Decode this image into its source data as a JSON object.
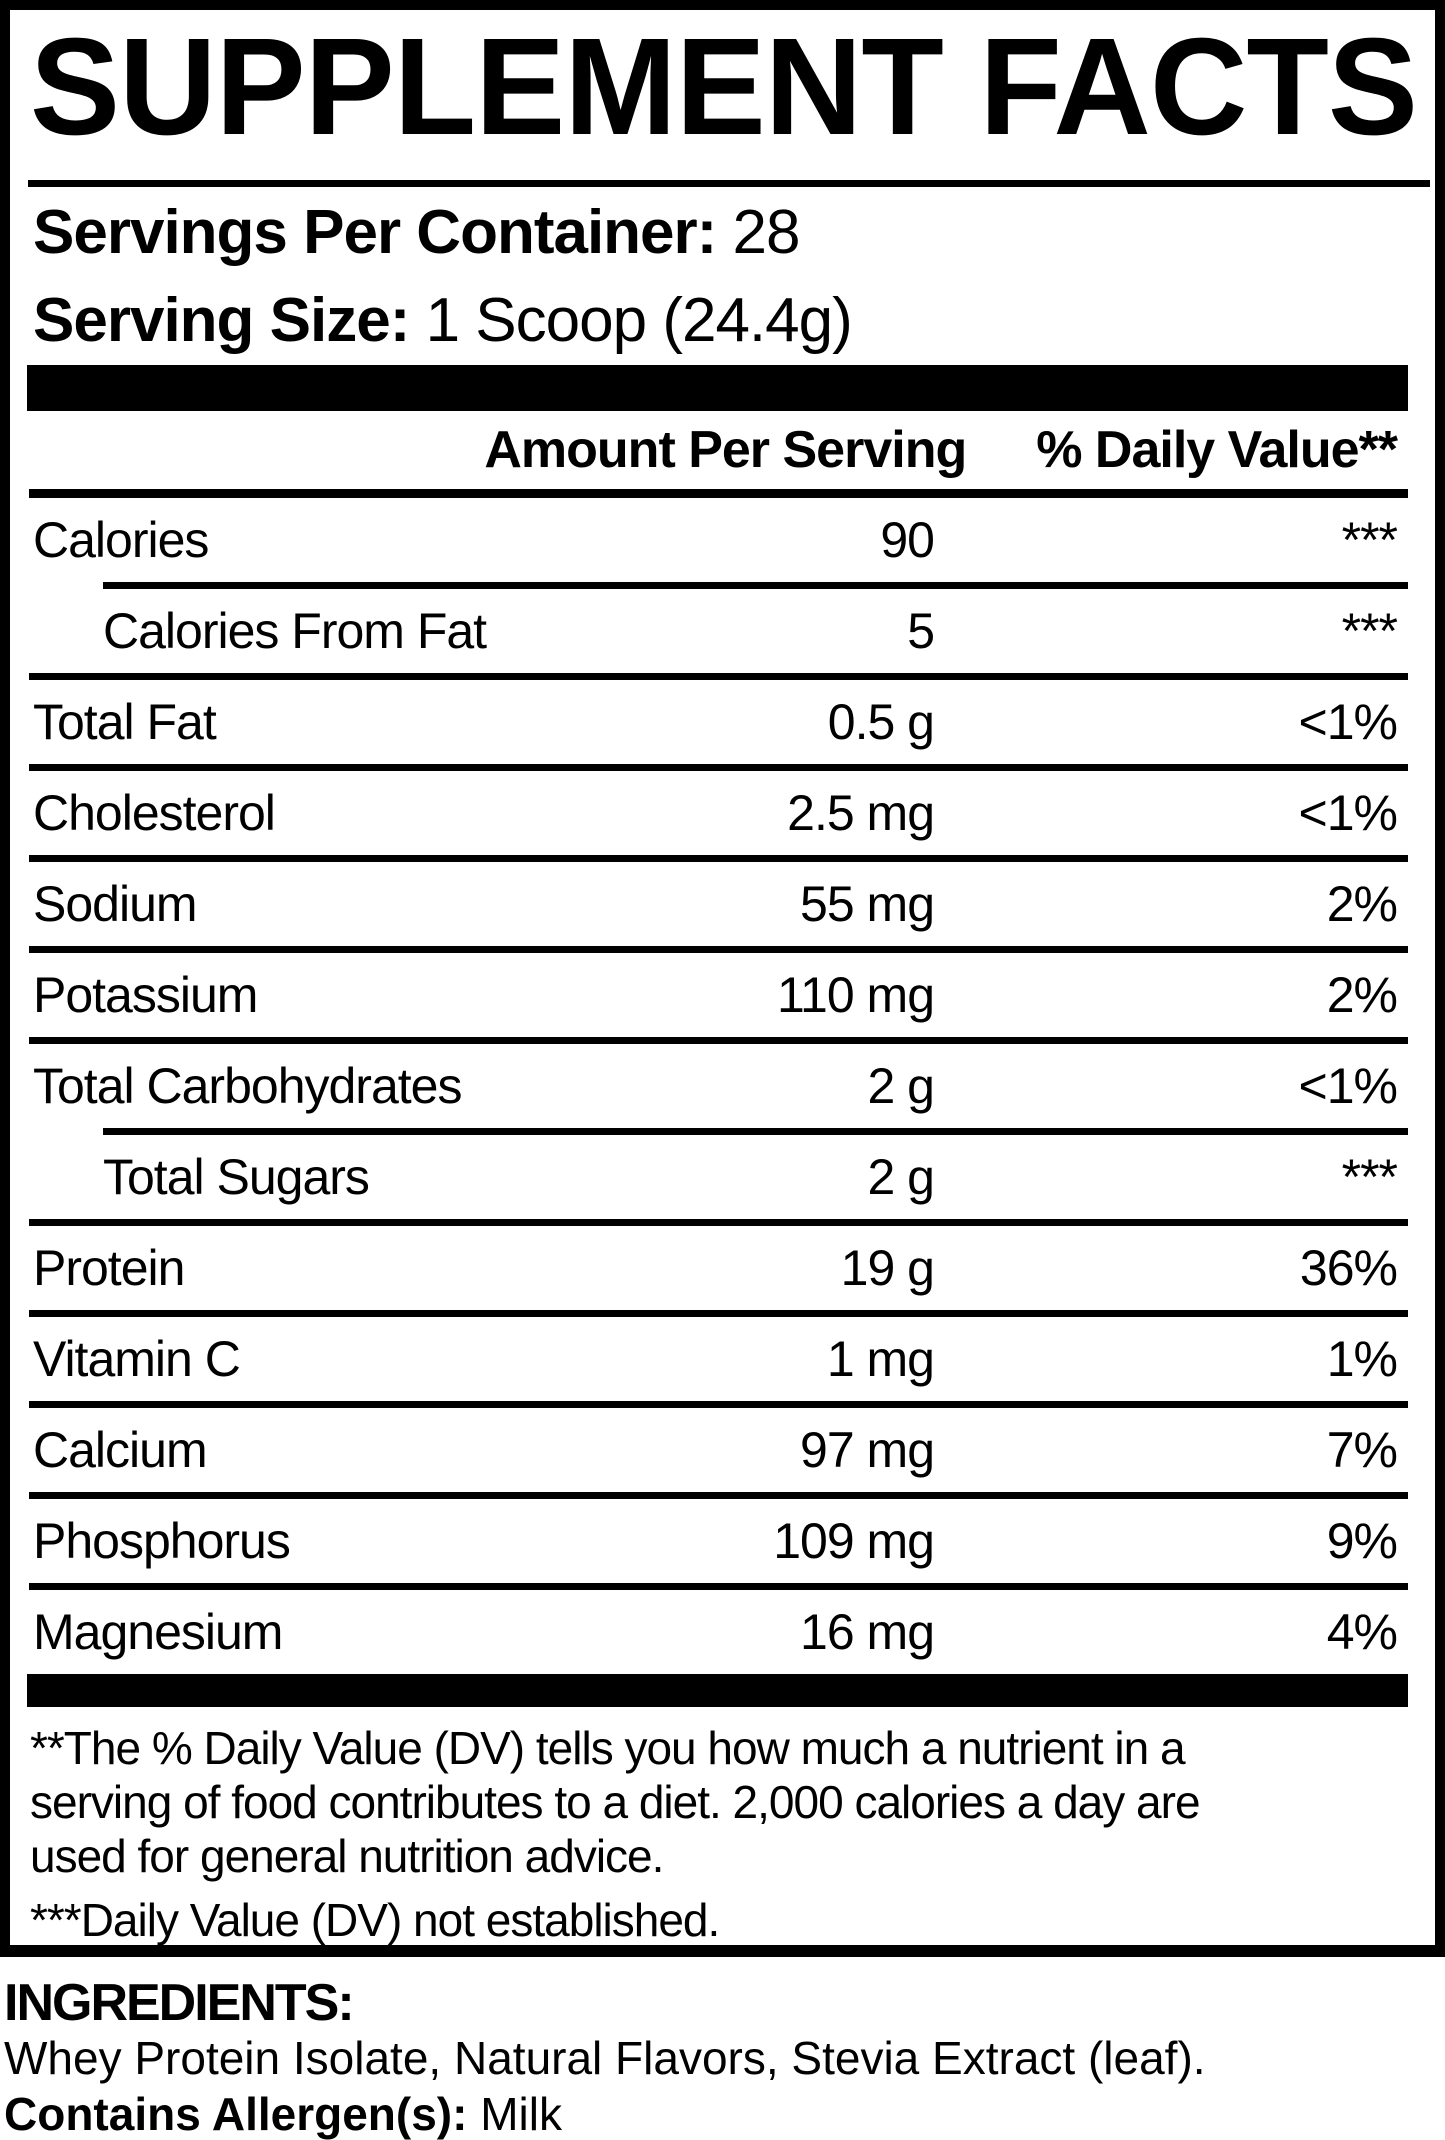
{
  "title": "SUPPLEMENT FACTS",
  "serving_info": {
    "servings_per_container_label": "Servings Per Container:",
    "servings_per_container_value": "28",
    "serving_size_label": "Serving Size:",
    "serving_size_value": "1 Scoop (24.4g)"
  },
  "table": {
    "header": {
      "amount": "Amount Per Serving",
      "daily_value": "% Daily Value**"
    },
    "rows": [
      {
        "label": "Calories",
        "amount": "90",
        "dv": "***",
        "indent": false
      },
      {
        "label": "Calories From Fat",
        "amount": "5",
        "dv": "***",
        "indent": true
      },
      {
        "label": "Total Fat",
        "amount": "0.5 g",
        "dv": "<1%",
        "indent": false
      },
      {
        "label": "Cholesterol",
        "amount": "2.5 mg",
        "dv": "<1%",
        "indent": false
      },
      {
        "label": "Sodium",
        "amount": "55 mg",
        "dv": "2%",
        "indent": false
      },
      {
        "label": "Potassium",
        "amount": "110 mg",
        "dv": "2%",
        "indent": false
      },
      {
        "label": "Total Carbohydrates",
        "amount": "2 g",
        "dv": "<1%",
        "indent": false
      },
      {
        "label": "Total Sugars",
        "amount": "2 g",
        "dv": "***",
        "indent": true
      },
      {
        "label": "Protein",
        "amount": "19 g",
        "dv": "36%",
        "indent": false
      },
      {
        "label": "Vitamin C",
        "amount": "1 mg",
        "dv": "1%",
        "indent": false
      },
      {
        "label": "Calcium",
        "amount": "97 mg",
        "dv": "7%",
        "indent": false
      },
      {
        "label": "Phosphorus",
        "amount": "109 mg",
        "dv": "9%",
        "indent": false
      },
      {
        "label": "Magnesium",
        "amount": "16 mg",
        "dv": "4%",
        "indent": false
      }
    ]
  },
  "footnotes": {
    "daily_value_note_lines": [
      "**The % Daily Value (DV) tells you how much a nutrient in a",
      "serving of food contributes to a diet. 2,000 calories a day are",
      "used for general nutrition advice."
    ],
    "not_established_note": "***Daily Value (DV) not established."
  },
  "ingredients": {
    "heading": "INGREDIENTS:",
    "list": "Whey Protein Isolate, Natural Flavors, Stevia Extract (leaf).",
    "allergen_label": "Contains Allergen(s):",
    "allergen_value": "Milk"
  },
  "colors": {
    "text": "#000000",
    "background": "#ffffff"
  }
}
